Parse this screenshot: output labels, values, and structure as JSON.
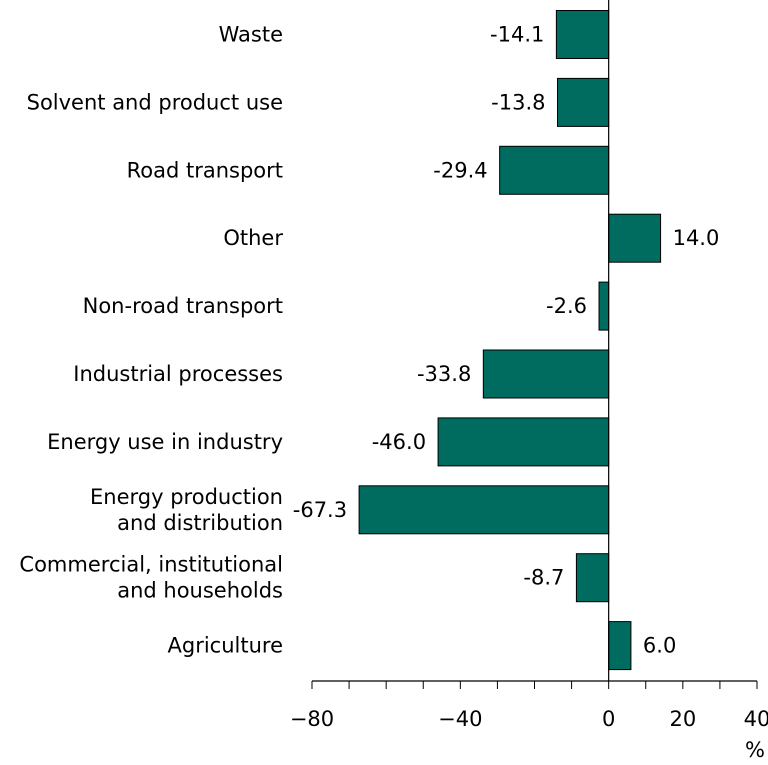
{
  "chart_data": {
    "type": "bar",
    "orientation": "horizontal",
    "categories": [
      [
        "Waste"
      ],
      [
        "Solvent and product use"
      ],
      [
        "Road transport"
      ],
      [
        "Other"
      ],
      [
        "Non-road transport"
      ],
      [
        "Industrial processes"
      ],
      [
        "Energy use in industry"
      ],
      [
        "Energy production",
        "and distribution"
      ],
      [
        "Commercial, institutional",
        "and households"
      ],
      [
        "Agriculture"
      ]
    ],
    "values": [
      -14.1,
      -13.8,
      -29.4,
      14.0,
      -2.6,
      -33.8,
      -46.0,
      -67.3,
      -8.7,
      6.0
    ],
    "value_labels": [
      "-14.1",
      "-13.8",
      "-29.4",
      "14.0",
      "-2.6",
      "-33.8",
      "-46.0",
      "-67.3",
      "-8.7",
      "6.0"
    ],
    "xlim": [
      -80,
      40
    ],
    "xticks": [
      -80,
      -40,
      0,
      20,
      40
    ],
    "xtick_labels": [
      "−80",
      "−40",
      "0",
      "20",
      "40"
    ],
    "unit_label": "%",
    "bar_color": "#006B5F",
    "bar_edge_color": "#000000",
    "grid": false
  }
}
